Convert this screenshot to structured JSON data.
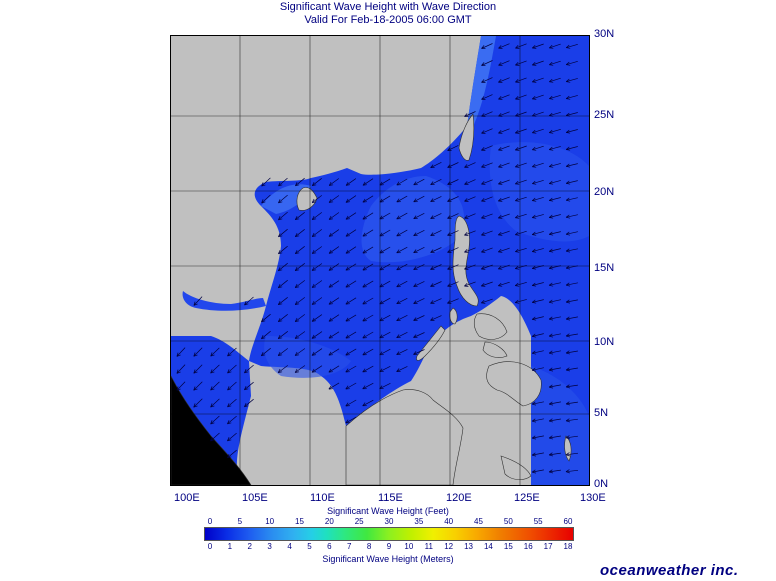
{
  "title": {
    "line1": "Significant Wave Height with Wave Direction",
    "line2": "Valid For Feb-18-2005 06:00 GMT"
  },
  "map": {
    "lat_labels": [
      "30N",
      "25N",
      "20N",
      "15N",
      "10N",
      "5N",
      "0N"
    ],
    "lon_labels": [
      "100E",
      "105E",
      "110E",
      "115E",
      "120E",
      "125E",
      "130E"
    ],
    "land_color": "#c0c0c0",
    "water_base_color": "#1a3ee8",
    "wave_direction": "toward southwest",
    "arrow_color": "#000040"
  },
  "legend": {
    "feet_caption": "Significant Wave Height (Feet)",
    "meters_caption": "Significant Wave Height (Meters)",
    "feet_ticks": [
      "0",
      "5",
      "10",
      "15",
      "20",
      "25",
      "30",
      "35",
      "40",
      "45",
      "50",
      "55",
      "60"
    ],
    "meter_ticks": [
      "0",
      "1",
      "2",
      "3",
      "4",
      "5",
      "6",
      "7",
      "8",
      "9",
      "10",
      "11",
      "12",
      "13",
      "14",
      "15",
      "16",
      "17",
      "18"
    ]
  },
  "brand": "oceanweather inc."
}
